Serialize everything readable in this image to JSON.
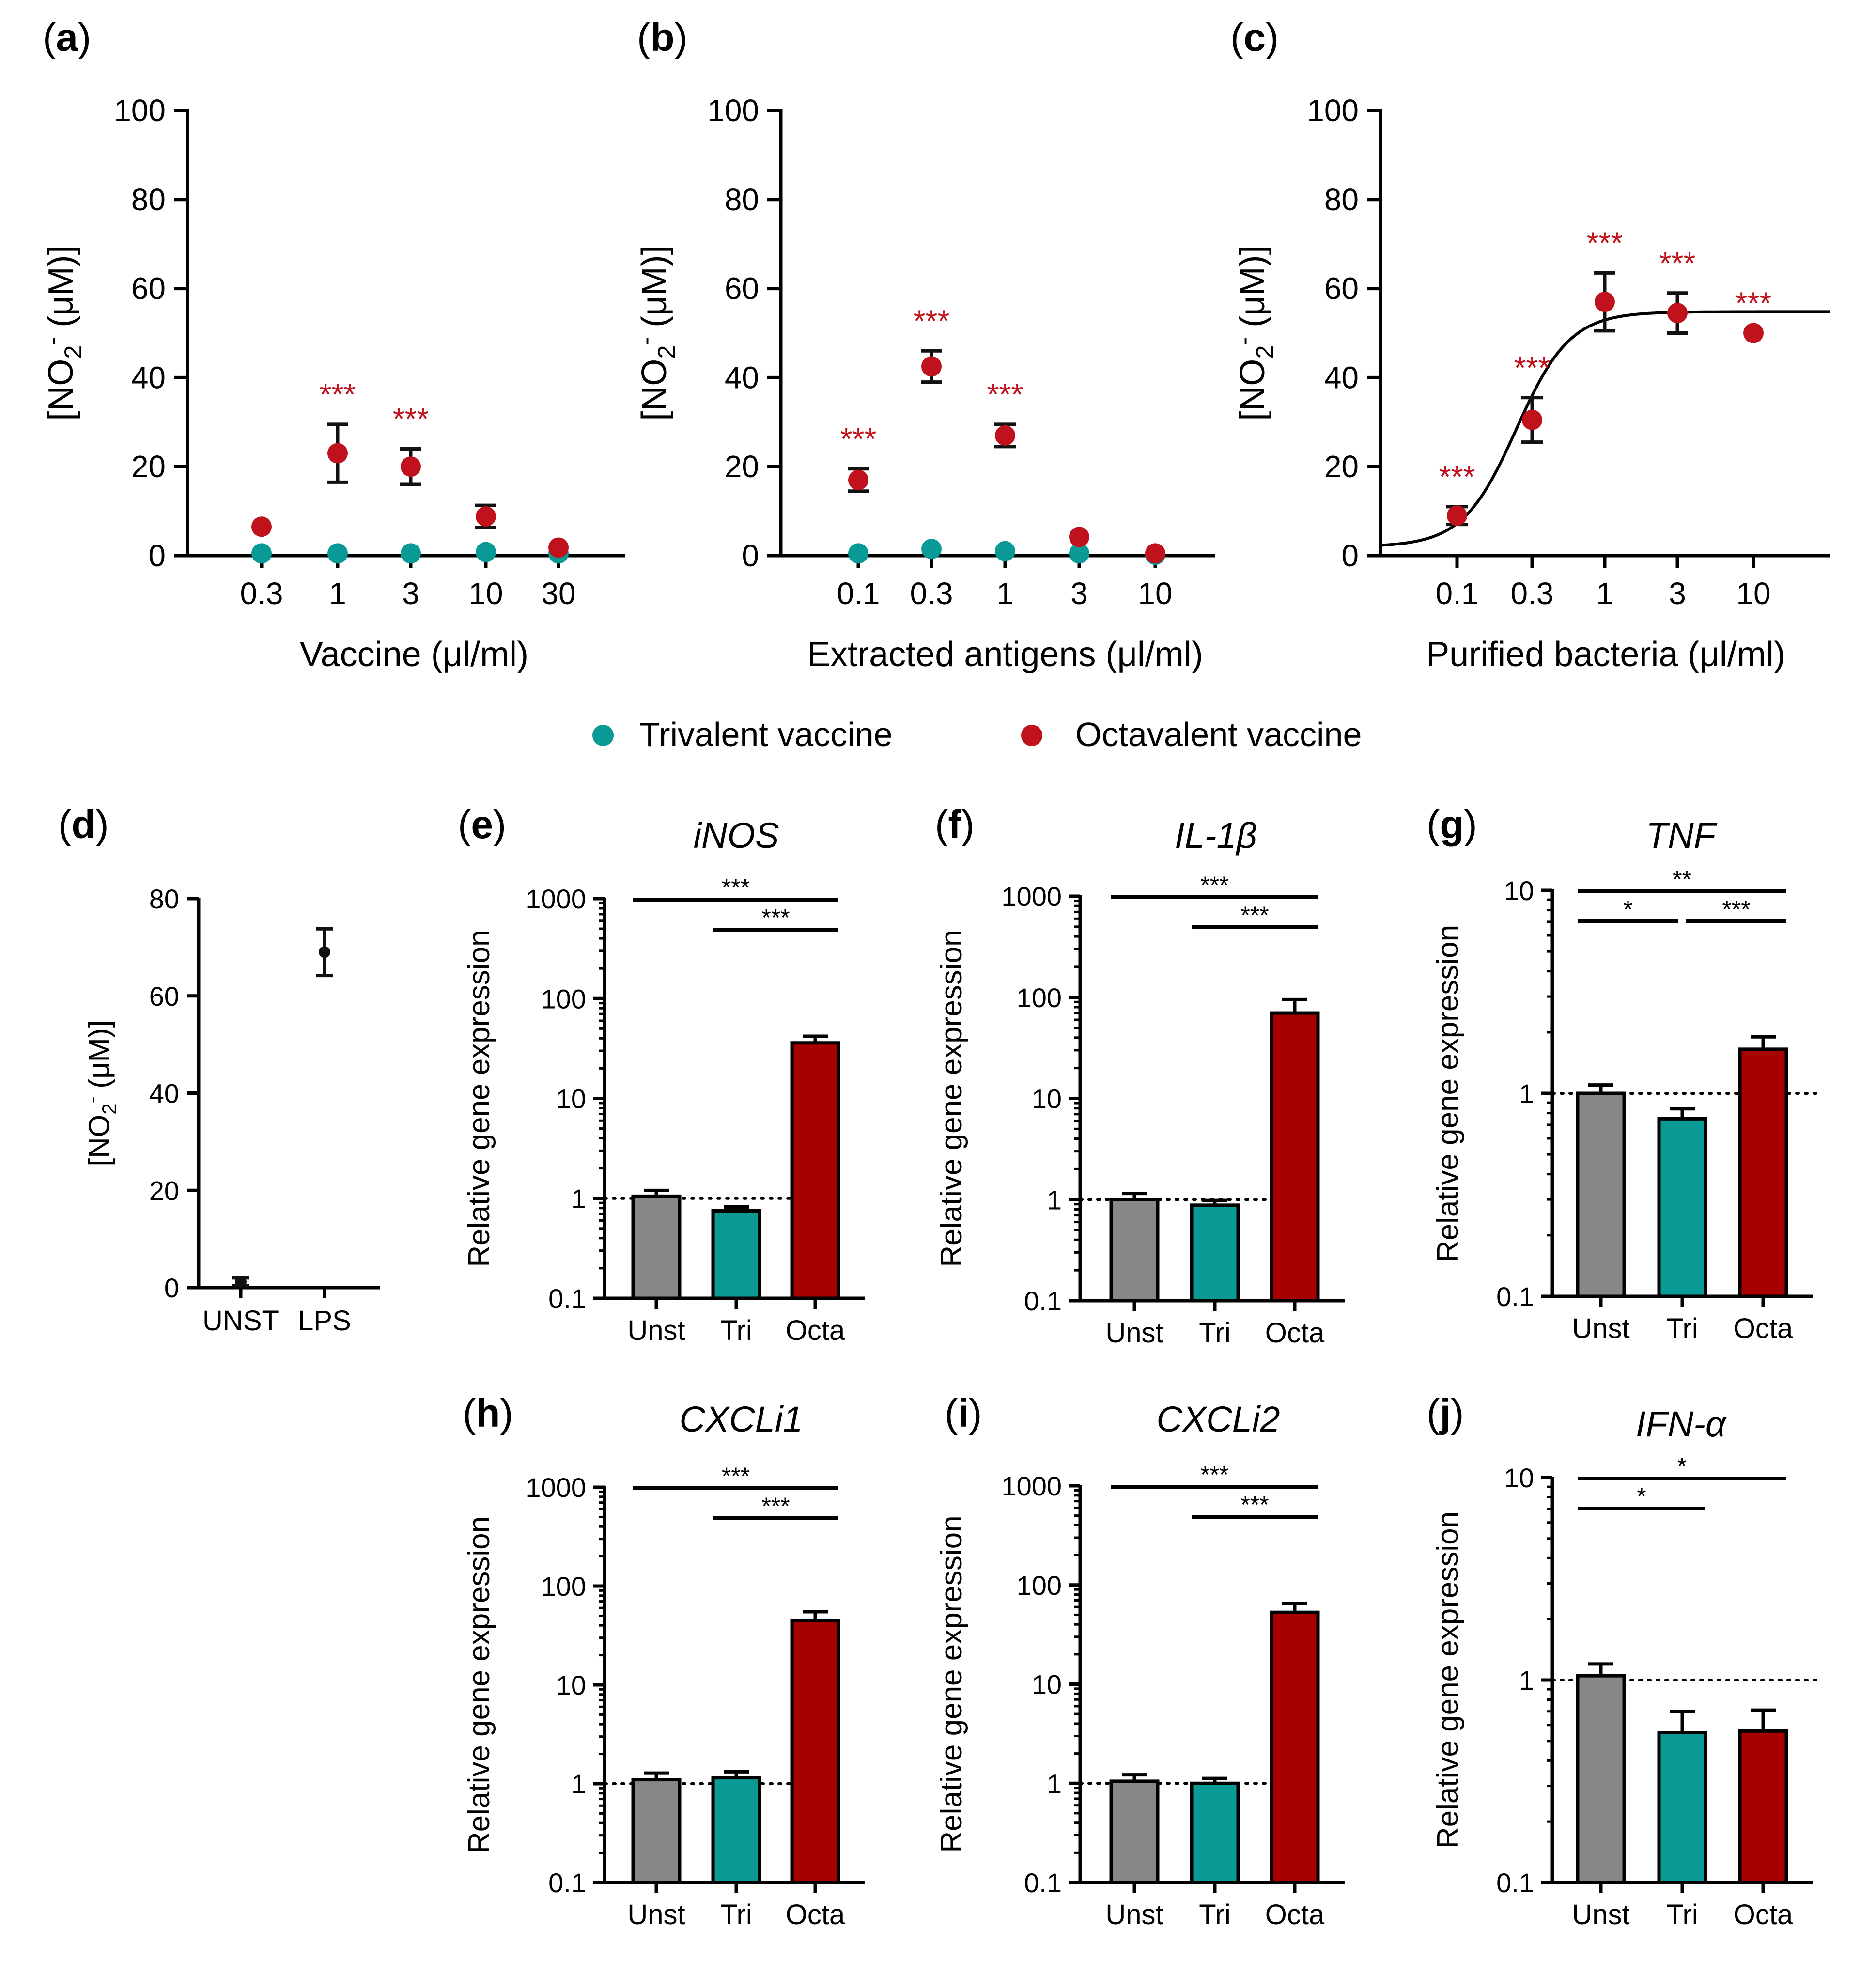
{
  "colors": {
    "trivalent": "#0a9a96",
    "octavalent": "#c0121c",
    "octa_bar": "#a80000",
    "unst_bar": "#878787",
    "axis": "#000000",
    "signif": "#c0121c"
  },
  "legend": {
    "trivalent_label": "Trivalent vaccine",
    "octavalent_label": "Octavalent vaccine"
  },
  "chart_data": [
    {
      "id": "a",
      "panel_label": "(a)",
      "type": "scatter",
      "xlabel": "Vaccine (μl/ml)",
      "ylabel": "[NO₂⁻ (μM)]",
      "ylim": [
        0,
        100
      ],
      "yticks": [
        0,
        20,
        40,
        60,
        80,
        100
      ],
      "categories": [
        "0.3",
        "1",
        "3",
        "10",
        "30"
      ],
      "series": [
        {
          "name": "Trivalent vaccine",
          "values": [
            0.5,
            0.5,
            0.5,
            0.8,
            0.5
          ],
          "errors": [
            0,
            0,
            0,
            0,
            0
          ]
        },
        {
          "name": "Octavalent vaccine",
          "values": [
            6.5,
            23,
            20,
            8.8,
            1.8
          ],
          "errors": [
            0,
            6.5,
            4,
            2.5,
            0
          ]
        }
      ],
      "annotations": [
        "",
        "***",
        "***",
        "",
        ""
      ]
    },
    {
      "id": "b",
      "panel_label": "(b)",
      "type": "scatter",
      "xlabel": "Extracted antigens (μl/ml)",
      "ylabel": "[NO₂⁻ (μM)]",
      "ylim": [
        0,
        100
      ],
      "yticks": [
        0,
        20,
        40,
        60,
        80,
        100
      ],
      "categories": [
        "0.1",
        "0.3",
        "1",
        "3",
        "10"
      ],
      "series": [
        {
          "name": "Trivalent vaccine",
          "values": [
            0.5,
            1.5,
            1,
            0.5,
            0.2
          ],
          "errors": [
            0,
            0,
            0,
            0,
            0
          ]
        },
        {
          "name": "Octavalent vaccine",
          "values": [
            17,
            42.5,
            27,
            4.2,
            0.5
          ],
          "errors": [
            2.5,
            3.5,
            2.5,
            0,
            0
          ]
        }
      ],
      "annotations": [
        "***",
        "***",
        "***",
        "",
        ""
      ]
    },
    {
      "id": "c",
      "panel_label": "(c)",
      "type": "scatter",
      "xlabel": "Purified bacteria (μl/ml)",
      "ylabel": "[NO₂⁻ (μM)]",
      "ylim": [
        0,
        100
      ],
      "yticks": [
        0,
        20,
        40,
        60,
        80,
        100
      ],
      "categories": [
        "0.1",
        "0.3",
        "1",
        "3",
        "10"
      ],
      "series": [
        {
          "name": "Octavalent vaccine",
          "values": [
            9,
            30.5,
            57,
            54.5,
            50
          ],
          "errors": [
            2,
            5,
            6.5,
            4.5,
            0
          ]
        }
      ],
      "fit": {
        "bottom": 2,
        "top": 54.8,
        "log_ec50": -0.6,
        "hill": 2.4
      },
      "annotations": [
        "***",
        "***",
        "***",
        "***",
        "***"
      ]
    },
    {
      "id": "d",
      "panel_label": "(d)",
      "type": "scatter",
      "xlabel": "",
      "ylabel": "[NO₂⁻ (μM)]",
      "ylim": [
        0,
        80
      ],
      "yticks": [
        0,
        20,
        40,
        60,
        80
      ],
      "categories": [
        "UNST",
        "LPS"
      ],
      "values": [
        1.2,
        69
      ],
      "errors": [
        0.8,
        4.8
      ]
    },
    {
      "id": "e",
      "panel_label": "(e)",
      "type": "bar",
      "title": "iNOS",
      "ylabel": "Relative gene expression",
      "scale": "log",
      "ylim": [
        0.1,
        1000
      ],
      "yticks": [
        "0.1",
        "1",
        "10",
        "100",
        "1000"
      ],
      "categories": [
        "Unst",
        "Tri",
        "Octa"
      ],
      "values": [
        1.05,
        0.75,
        36
      ],
      "errors_upper": [
        1.2,
        0.82,
        42
      ],
      "brackets": [
        {
          "from": 0,
          "to": 2,
          "label": "***"
        },
        {
          "from": 1,
          "to": 2,
          "label": "***"
        }
      ]
    },
    {
      "id": "f",
      "panel_label": "(f)",
      "type": "bar",
      "title": "IL-1β",
      "ylabel": "Relative gene expression",
      "scale": "log",
      "ylim": [
        0.1,
        1000
      ],
      "yticks": [
        "0.1",
        "1",
        "10",
        "100",
        "1000"
      ],
      "categories": [
        "Unst",
        "Tri",
        "Octa"
      ],
      "values": [
        1,
        0.88,
        70
      ],
      "errors_upper": [
        1.15,
        0.98,
        95
      ],
      "brackets": [
        {
          "from": 0,
          "to": 2,
          "label": "***"
        },
        {
          "from": 1,
          "to": 2,
          "label": "***"
        }
      ]
    },
    {
      "id": "g",
      "panel_label": "(g)",
      "type": "bar",
      "title": "TNF",
      "ylabel": "Relative gene expression",
      "scale": "log",
      "ylim": [
        0.1,
        10
      ],
      "yticks": [
        "0.1",
        "1",
        "10"
      ],
      "categories": [
        "Unst",
        "Tri",
        "Octa"
      ],
      "values": [
        1,
        0.75,
        1.65
      ],
      "errors_upper": [
        1.1,
        0.84,
        1.9
      ],
      "brackets": [
        {
          "from": 0,
          "to": 2,
          "label": "**"
        },
        {
          "from": 0,
          "to": 1,
          "label": "*"
        },
        {
          "from": 1,
          "to": 2,
          "label": "***"
        }
      ]
    },
    {
      "id": "h",
      "panel_label": "(h)",
      "type": "bar",
      "title": "CXCLi1",
      "ylabel": "Relative gene expression",
      "scale": "log",
      "ylim": [
        0.1,
        1000
      ],
      "yticks": [
        "0.1",
        "1",
        "10",
        "100",
        "1000"
      ],
      "categories": [
        "Unst",
        "Tri",
        "Octa"
      ],
      "values": [
        1.1,
        1.15,
        45
      ],
      "errors_upper": [
        1.28,
        1.32,
        55
      ],
      "brackets": [
        {
          "from": 0,
          "to": 2,
          "label": "***"
        },
        {
          "from": 1,
          "to": 2,
          "label": "***"
        }
      ]
    },
    {
      "id": "i",
      "panel_label": "(i)",
      "type": "bar",
      "title": "CXCLi2",
      "ylabel": "Relative gene expression",
      "scale": "log",
      "ylim": [
        0.1,
        1000
      ],
      "yticks": [
        "0.1",
        "1",
        "10",
        "100",
        "1000"
      ],
      "categories": [
        "Unst",
        "Tri",
        "Octa"
      ],
      "values": [
        1.05,
        1,
        53
      ],
      "errors_upper": [
        1.22,
        1.12,
        65
      ],
      "brackets": [
        {
          "from": 0,
          "to": 2,
          "label": "***"
        },
        {
          "from": 1,
          "to": 2,
          "label": "***"
        }
      ]
    },
    {
      "id": "j",
      "panel_label": "(j)",
      "type": "bar",
      "title": "IFN-α",
      "ylabel": "Relative gene expression",
      "scale": "log",
      "ylim": [
        0.1,
        10
      ],
      "yticks": [
        "0.1",
        "1",
        "10"
      ],
      "categories": [
        "Unst",
        "Tri",
        "Octa"
      ],
      "values": [
        1.05,
        0.55,
        0.56
      ],
      "errors_upper": [
        1.2,
        0.7,
        0.71
      ],
      "brackets": [
        {
          "from": 0,
          "to": 2,
          "label": "*"
        },
        {
          "from": 0,
          "to": 1,
          "label": "*"
        }
      ]
    }
  ]
}
